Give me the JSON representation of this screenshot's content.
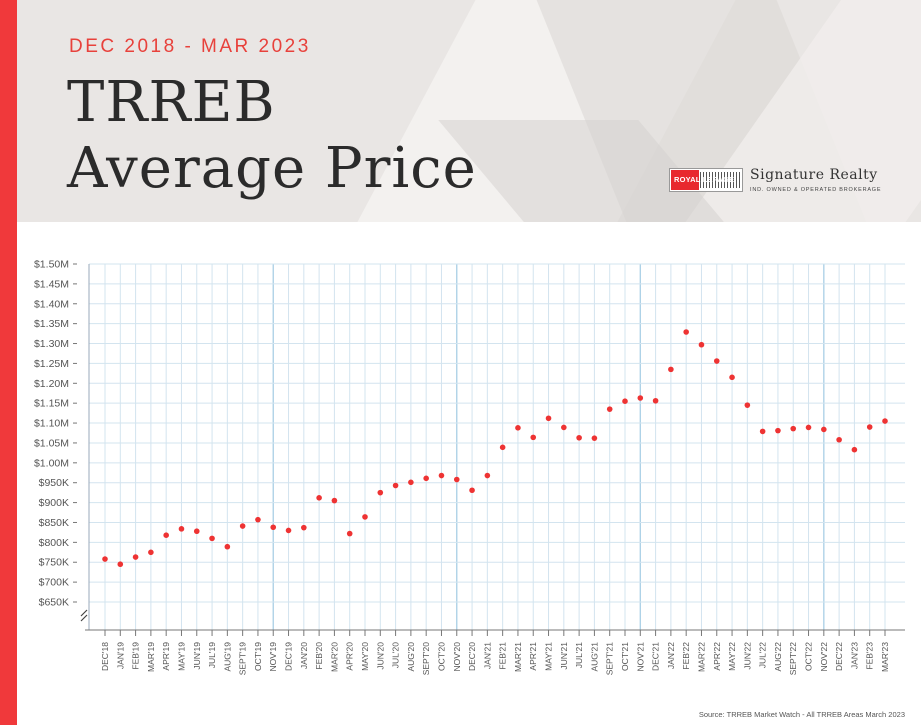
{
  "header": {
    "subtitle": "DEC 2018 - MAR 2023",
    "title_line1": "TRREB",
    "title_line2": "Average Price",
    "logo": {
      "brand": "ROYAL LEPAGE",
      "company": "Signature Realty",
      "tagline": "IND. OWNED & OPERATED BROKERAGE"
    }
  },
  "colors": {
    "accent_red": "#f0393b",
    "point_red": "#ee3333",
    "grid": "#d3e4ef",
    "grid_major": "#a9cfe6"
  },
  "source": "Source: TRREB Market Watch - All TRREB Areas March 2023",
  "chart_data": {
    "type": "scatter",
    "y_tick_labels": [
      "$1.50M",
      "$1.45M",
      "$1.40M",
      "$1.35M",
      "$1.30M",
      "$1.25M",
      "$1.20M",
      "$1.15M",
      "$1.10M",
      "$1.05M",
      "$1.00M",
      "$950K",
      "$900K",
      "$850K",
      "$800K",
      "$750K",
      "$700K",
      "$650K"
    ],
    "ylim": [
      650000,
      1500000
    ],
    "axis_break": true,
    "grid": true,
    "categories": [
      "DEC'18",
      "JAN'19",
      "FEB'19",
      "MAR'19",
      "APR'19",
      "MAY'19",
      "JUN'19",
      "JUL'19",
      "AUG'19",
      "SEPT'19",
      "OCT'19",
      "NOV'19",
      "DEC'19",
      "JAN'20",
      "FEB'20",
      "MAR'20",
      "APR'20",
      "MAY'20",
      "JUN'20",
      "JUL'20",
      "AUG'20",
      "SEPT'20",
      "OCT'20",
      "NOV'20",
      "DEC'20",
      "JAN'21",
      "FEB'21",
      "MAR'21",
      "APR'21",
      "MAY'21",
      "JUN'21",
      "JUL'21",
      "AUG'21",
      "SEPT'21",
      "OCT'21",
      "NOV'21",
      "DEC'21",
      "JAN'22",
      "FEB'22",
      "MAR'22",
      "APR'22",
      "MAY'22",
      "JUN'22",
      "JUL'22",
      "AUG'22",
      "SEPT'22",
      "OCT'22",
      "NOV'22",
      "DEC'22",
      "JAN'23",
      "FEB'23",
      "MAR'23"
    ],
    "values": [
      758000,
      745000,
      763000,
      775000,
      818000,
      834000,
      828000,
      810000,
      789000,
      841000,
      857000,
      838000,
      830000,
      837000,
      912000,
      905000,
      822000,
      864000,
      925000,
      943000,
      951000,
      961000,
      968000,
      958000,
      931000,
      968000,
      1039000,
      1088000,
      1064000,
      1112000,
      1089000,
      1063000,
      1062000,
      1135000,
      1155000,
      1163000,
      1156000,
      1235000,
      1329000,
      1297000,
      1256000,
      1215000,
      1145000,
      1079000,
      1081000,
      1086000,
      1089000,
      1084000,
      1058000,
      1033000,
      1090000,
      1105000
    ]
  }
}
